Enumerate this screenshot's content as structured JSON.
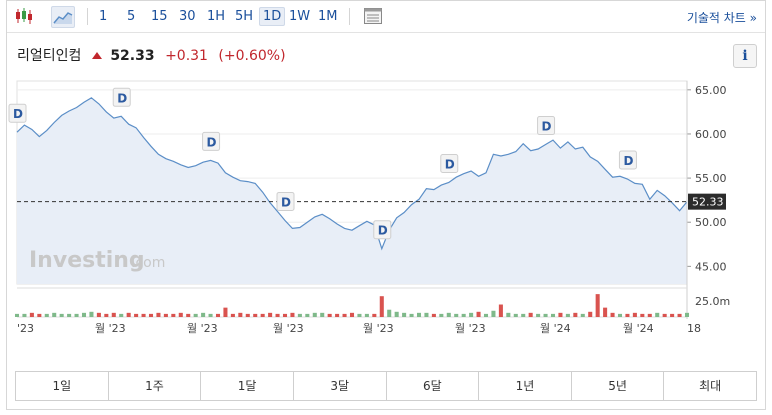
{
  "toolbar": {
    "timeframes": [
      "1",
      "5",
      "15",
      "30",
      "1H",
      "5H",
      "1D",
      "1W",
      "1M"
    ],
    "active_timeframe": "1D",
    "advanced_label": "기술적 차트 »"
  },
  "quote": {
    "name": "리얼티인컴",
    "price": "52.33",
    "change": "+0.31",
    "change_pct": "(+0.60%)",
    "direction_color": "#c1272d"
  },
  "info_button": "i",
  "watermark": {
    "brand": "Investing",
    "suffix": ".com"
  },
  "chart": {
    "y_ticks": [
      "65.00",
      "60.00",
      "55.00",
      "50.00",
      "45.00"
    ],
    "price_tag": "52.33",
    "volume_tick": "25.0m",
    "x_ticks": [
      "'23",
      "월 '23",
      "월 '23",
      "월 '23",
      "월 '23",
      "월 '23",
      "월 '24",
      "월 '24",
      "18"
    ],
    "dividend_marker": "D",
    "line_color": "#5b8ec7",
    "area_color": "#e8eef7"
  },
  "chart_data": {
    "type": "area",
    "ylim": [
      43,
      66
    ],
    "last_price": 52.33,
    "series": [
      {
        "values": [
          60.2,
          61.0,
          60.5,
          59.7,
          60.4,
          61.3,
          62.1,
          62.6,
          63.0,
          63.6,
          64.1,
          63.4,
          62.5,
          61.8,
          62.0,
          61.1,
          60.7,
          59.6,
          58.6,
          57.7,
          57.2,
          56.9,
          56.5,
          56.2,
          56.4,
          56.8,
          57.0,
          56.7,
          55.6,
          55.1,
          54.7,
          54.6,
          54.4,
          53.4,
          52.2,
          51.2,
          50.2,
          49.3,
          49.4,
          50.0,
          50.6,
          50.9,
          50.4,
          49.8,
          49.3,
          49.1,
          49.6,
          50.1,
          49.7,
          47.0,
          49.1,
          50.5,
          51.1,
          52.0,
          52.6,
          53.8,
          53.7,
          54.2,
          54.5,
          55.1,
          55.5,
          55.8,
          55.2,
          55.6,
          57.7,
          57.5,
          57.7,
          58.0,
          58.9,
          58.1,
          58.3,
          58.8,
          59.3,
          58.4,
          59.1,
          58.3,
          58.5,
          57.4,
          56.9,
          56.0,
          55.1,
          55.2,
          54.9,
          54.4,
          54.3,
          52.6,
          53.6,
          53.0,
          52.2,
          51.3,
          52.33
        ]
      }
    ],
    "dividend_markers": [
      {
        "index": 0,
        "label": "D"
      },
      {
        "index": 14,
        "label": "D"
      },
      {
        "index": 26,
        "label": "D"
      },
      {
        "index": 36,
        "label": "D"
      },
      {
        "index": 49,
        "label": "D"
      },
      {
        "index": 58,
        "label": "D"
      },
      {
        "index": 71,
        "label": "D"
      },
      {
        "index": 82,
        "label": "D"
      }
    ],
    "volume": [
      3,
      3,
      4,
      3,
      3,
      4,
      3,
      3,
      3,
      4,
      5,
      4,
      3,
      4,
      3,
      4,
      3,
      3,
      3,
      4,
      3,
      3,
      4,
      3,
      3,
      4,
      3,
      3,
      9,
      3,
      4,
      3,
      3,
      3,
      4,
      3,
      3,
      4,
      3,
      3,
      4,
      4,
      3,
      3,
      3,
      4,
      3,
      3,
      3,
      20,
      7,
      5,
      4,
      3,
      4,
      4,
      3,
      3,
      4,
      3,
      3,
      4,
      5,
      3,
      6,
      12,
      4,
      3,
      3,
      4,
      3,
      3,
      3,
      4,
      3,
      4,
      3,
      5,
      22,
      9,
      4,
      3,
      3,
      4,
      3,
      3,
      4,
      3,
      3,
      3,
      4
    ]
  },
  "periods": [
    "1일",
    "1주",
    "1달",
    "3달",
    "6달",
    "1년",
    "5년",
    "최대"
  ]
}
